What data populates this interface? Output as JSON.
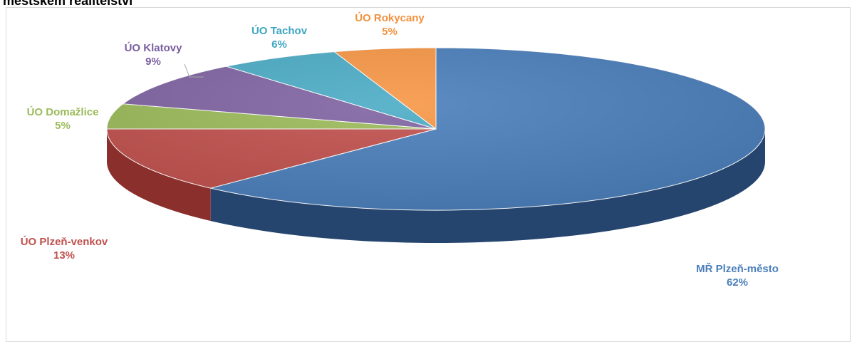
{
  "heading": "městském realitelství",
  "chart_data": {
    "type": "pie",
    "title": "",
    "legend": "none",
    "slices": [
      {
        "label": "MŘ Plzeň-město",
        "value": 62,
        "pct": "62%",
        "color": "#4a7ebb",
        "dark": "#25456f",
        "label_color": "#4a7ebb"
      },
      {
        "label": "ÚO Plzeň-venkov",
        "value": 13,
        "pct": "13%",
        "color": "#c0504d",
        "dark": "#8b2f2c",
        "label_color": "#c0504d"
      },
      {
        "label": "ÚO Domažlice",
        "value": 5,
        "pct": "5%",
        "color": "#9bbb59",
        "dark": "#6b8a33",
        "label_color": "#9bbb59"
      },
      {
        "label": "ÚO Klatovy",
        "value": 9,
        "pct": "9%",
        "color": "#8064a2",
        "dark": "#553f73",
        "label_color": "#7a5fa0"
      },
      {
        "label": "ÚO Tachov",
        "value": 6,
        "pct": "6%",
        "color": "#4bacc6",
        "dark": "#2d7a8f",
        "label_color": "#3ea6c2"
      },
      {
        "label": "ÚO Rokycany",
        "value": 5,
        "pct": "5%",
        "color": "#f79646",
        "dark": "#b8651f",
        "label_color": "#f2923e"
      }
    ]
  }
}
